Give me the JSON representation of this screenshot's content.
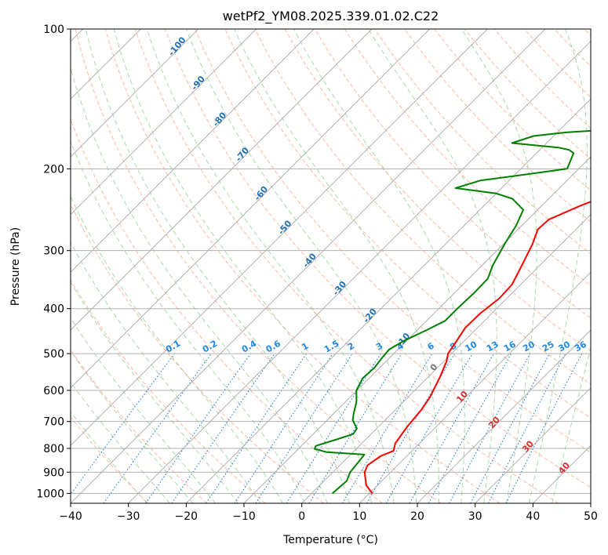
{
  "chart_data": {
    "type": "line",
    "title": "wetPf2_YM08.2025.339.01.02.C22",
    "xlabel": "Temperature (°C)",
    "ylabel": "Pressure (hPa)",
    "xlim": [
      -40,
      50
    ],
    "ylim": [
      1050,
      100
    ],
    "y_scale": "log",
    "x_ticks": [
      -40,
      -30,
      -20,
      -10,
      0,
      10,
      20,
      30,
      40,
      50
    ],
    "y_ticks": [
      1000,
      900,
      800,
      700,
      600,
      500,
      400,
      300,
      200,
      100
    ],
    "grid": true,
    "series": [
      {
        "color": "#ff0000",
        "points": [
          [
            10.5,
            1000
          ],
          [
            8.0,
            960
          ],
          [
            5.5,
            900
          ],
          [
            4.8,
            870
          ],
          [
            5.5,
            830
          ],
          [
            6.8,
            810
          ],
          [
            5.8,
            780
          ],
          [
            5.0,
            720
          ],
          [
            4.5,
            660
          ],
          [
            3.8,
            620
          ],
          [
            2.0,
            560
          ],
          [
            0.5,
            520
          ],
          [
            -0.6,
            500
          ],
          [
            -1.3,
            470
          ],
          [
            -2.1,
            440
          ],
          [
            -2.0,
            410
          ],
          [
            -1.3,
            380
          ],
          [
            -1.5,
            355
          ],
          [
            -3.0,
            325
          ],
          [
            -5.0,
            290
          ],
          [
            -6.6,
            270
          ],
          [
            -6.4,
            257
          ],
          [
            -3.3,
            240
          ],
          [
            1.0,
            222
          ],
          [
            4.0,
            205
          ],
          [
            6.0,
            195
          ],
          [
            9.0,
            180
          ],
          [
            13.0,
            164
          ],
          [
            16.0,
            150
          ],
          [
            19.0,
            138
          ],
          [
            21.5,
            128
          ],
          [
            22.6,
            124
          ],
          [
            24.7,
            118
          ],
          [
            25.8,
            116
          ],
          [
            27.8,
            110
          ],
          [
            30.7,
            102
          ],
          [
            31.3,
            100
          ]
        ]
      },
      {
        "color": "#008000",
        "points": [
          [
            3.6,
            1000
          ],
          [
            3.7,
            980
          ],
          [
            3.9,
            940
          ],
          [
            3.0,
            900
          ],
          [
            2.7,
            860
          ],
          [
            2.4,
            825
          ],
          [
            -4.5,
            815
          ],
          [
            -7.2,
            802
          ],
          [
            -7.5,
            790
          ],
          [
            -5.0,
            765
          ],
          [
            -3.1,
            745
          ],
          [
            -3.4,
            725
          ],
          [
            -5.6,
            695
          ],
          [
            -6.6,
            672
          ],
          [
            -8.1,
            635
          ],
          [
            -10.1,
            600
          ],
          [
            -11.1,
            565
          ],
          [
            -10.9,
            536
          ],
          [
            -11.3,
            510
          ],
          [
            -11.5,
            490
          ],
          [
            -10.5,
            470
          ],
          [
            -8.4,
            445
          ],
          [
            -6.8,
            425
          ],
          [
            -6.8,
            400
          ],
          [
            -6.6,
            370
          ],
          [
            -6.7,
            345
          ],
          [
            -8.2,
            322
          ],
          [
            -9.8,
            290
          ],
          [
            -11.0,
            265
          ],
          [
            -12.5,
            245
          ],
          [
            -16.3,
            232
          ],
          [
            -20.0,
            226
          ],
          [
            -28.0,
            220
          ],
          [
            -25.0,
            212
          ],
          [
            -17.5,
            205
          ],
          [
            -12.0,
            200
          ],
          [
            -13.6,
            185
          ],
          [
            -15.0,
            182
          ],
          [
            -17.2,
            180
          ],
          [
            -26.0,
            176
          ],
          [
            -23.5,
            170
          ],
          [
            -18.5,
            167
          ],
          [
            -12.3,
            165
          ],
          [
            -8.5,
            162
          ],
          [
            -9.7,
            157
          ],
          [
            -13.0,
            148
          ],
          [
            -13.8,
            143
          ],
          [
            -12.8,
            139
          ],
          [
            -10.4,
            137
          ],
          [
            -8.3,
            131
          ],
          [
            -6.1,
            124
          ],
          [
            -4.7,
            117
          ],
          [
            -4.3,
            113
          ],
          [
            -3.2,
            107
          ],
          [
            -1.3,
            101
          ],
          [
            -0.8,
            100
          ]
        ]
      }
    ],
    "mixing_ratio_labels": [
      "0.1",
      "0.2",
      "0.4",
      "0.6",
      "1",
      "1.5",
      "2",
      "3",
      "4",
      "6",
      "8",
      "10",
      "13",
      "16",
      "20",
      "25",
      "30",
      "36"
    ],
    "mixing_ratios": [
      0.1,
      0.2,
      0.4,
      0.6,
      1,
      1.5,
      2,
      3,
      4,
      6,
      8,
      10,
      13,
      16,
      20,
      25,
      30,
      36
    ],
    "dry_adiabat_labels": [
      "-100",
      "-90",
      "-80",
      "-70",
      "-60",
      "-50",
      "-40",
      "-30",
      "-20",
      "-10"
    ],
    "dry_adiabat_label_temps": [
      -100,
      -90,
      -80,
      -70,
      -60,
      -50,
      -40,
      -30,
      -20,
      -10
    ],
    "moist_adiabat_labels": [
      "0",
      "10",
      "20",
      "30",
      "40"
    ],
    "moist_adiabat_label_temps": [
      0,
      10,
      20,
      30,
      40
    ]
  }
}
